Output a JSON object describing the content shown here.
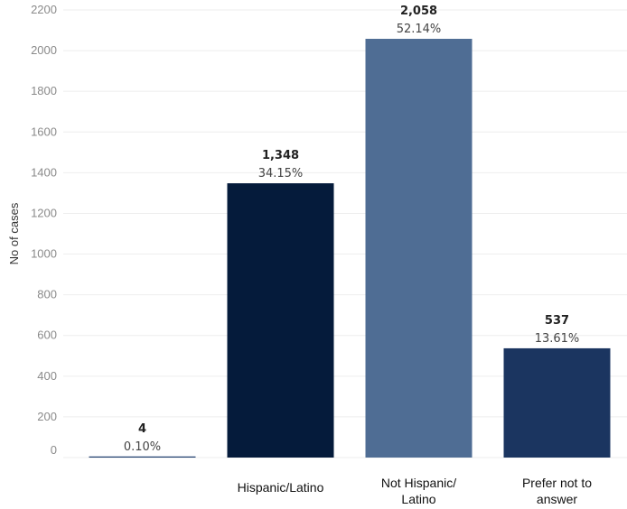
{
  "chart_data": {
    "type": "bar",
    "ylabel": "No of cases",
    "xlabel": "",
    "ylim": [
      0,
      2200
    ],
    "yticks": [
      0,
      200,
      400,
      600,
      800,
      1000,
      1200,
      1400,
      1600,
      1800,
      2000,
      2200
    ],
    "grid": true,
    "categories": [
      [],
      [
        "Hispanic/Latino"
      ],
      [
        "Not Hispanic/",
        "Latino"
      ],
      [
        "Prefer not to",
        "answer"
      ]
    ],
    "values": [
      4,
      1348,
      2058,
      537
    ],
    "value_labels": [
      "4",
      "1,348",
      "2,058",
      "537"
    ],
    "percent_labels": [
      "0.10%",
      "34.15%",
      "52.14%",
      "13.61%"
    ],
    "colors": [
      "#1a3a6b",
      "#051b3b",
      "#4f6d94",
      "#1b3560"
    ]
  }
}
